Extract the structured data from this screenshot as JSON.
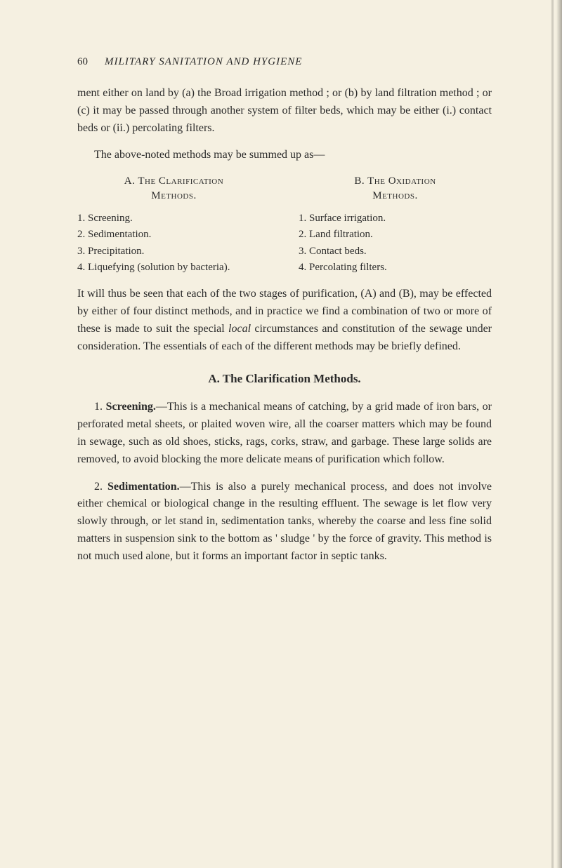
{
  "header": {
    "page_number": "60",
    "running_title": "MILITARY SANITATION AND HYGIENE"
  },
  "para1": "ment either on land by (a) the Broad irrigation method ; or (b) by land filtration method ; or (c) it may be passed through another system of filter beds, which may be either (i.) contact beds or (ii.) percolating filters.",
  "para2": "The above-noted methods may be summed up as—",
  "columns": {
    "left": {
      "heading_a": "A. The Clarification",
      "heading_b": "Methods.",
      "items": [
        "1. Screening.",
        "2. Sedimentation.",
        "3. Precipitation.",
        "4. Liquefying (solution by bacteria)."
      ]
    },
    "right": {
      "heading_a": "B. The Oxidation",
      "heading_b": "Methods.",
      "items": [
        "1. Surface irrigation.",
        "2. Land filtration.",
        "3. Contact beds.",
        "4. Percolating filters."
      ]
    }
  },
  "para3_a": "It will thus be seen that each of the two stages of purification, (A) and (B), may be effected by either of four distinct methods, and in practice we find a combination of two or more of these is made to suit the special ",
  "para3_italic": "local",
  "para3_b": " circumstances and constitution of the sewage under consideration. The essentials of each of the different methods may be briefly defined.",
  "section_heading": "A. The Clarification Methods.",
  "para4_a": "1. ",
  "para4_bold": "Screening.",
  "para4_b": "—This is a mechanical means of catching, by a grid made of iron bars, or perforated metal sheets, or plaited woven wire, all the coarser matters which may be found in sewage, such as old shoes, sticks, rags, corks, straw, and garbage. These large solids are removed, to avoid blocking the more delicate means of purification which follow.",
  "para5_a": "2. ",
  "para5_bold": "Sedimentation.",
  "para5_b": "—This is also a purely mechanical process, and does not involve either chemical or biological change in the resulting effluent. The sewage is let flow very slowly through, or let stand in, sedimentation tanks, whereby the coarse and less fine solid matters in suspension sink to the bottom as ' sludge ' by the force of gravity. This method is not much used alone, but it forms an important factor in septic tanks."
}
